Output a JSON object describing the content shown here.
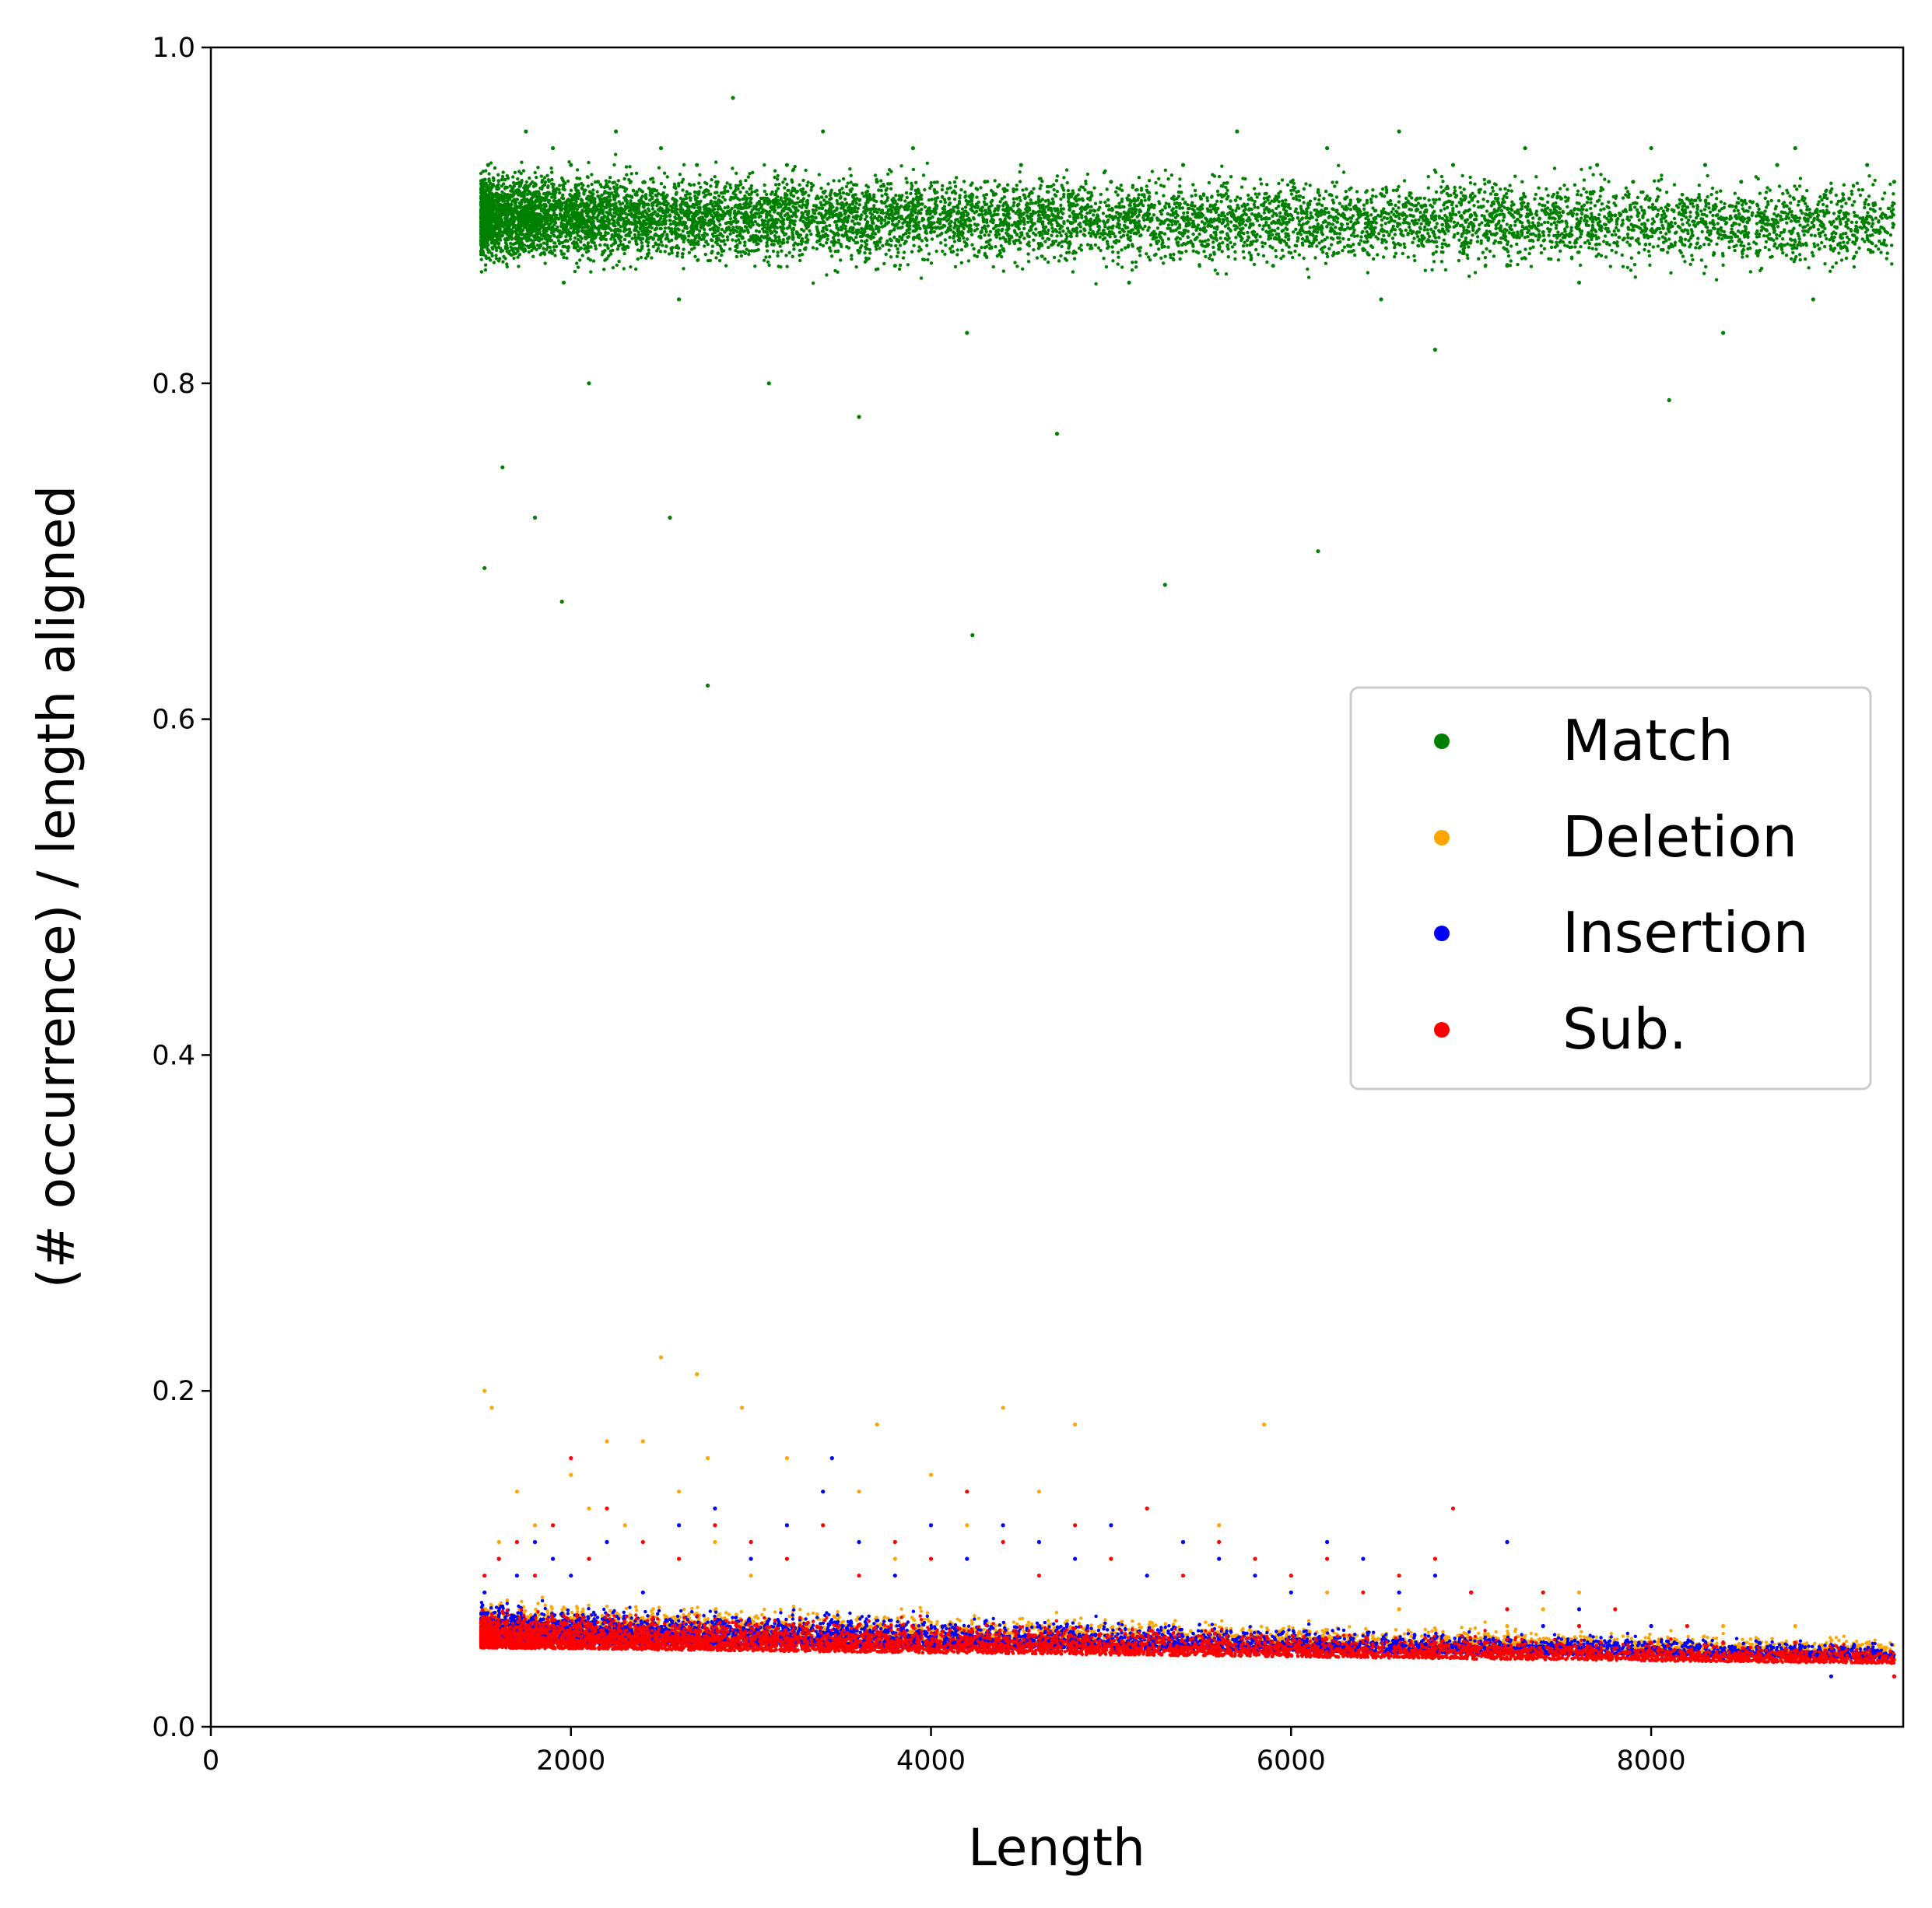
{
  "chart_data": {
    "type": "scatter",
    "title": "",
    "xlabel": "Length",
    "ylabel": "(# occurrence) / length aligned",
    "xlim": [
      0,
      9400
    ],
    "ylim": [
      0.0,
      1.0
    ],
    "x_ticks": [
      0,
      2000,
      4000,
      6000,
      8000
    ],
    "x_tick_labels": [
      "0",
      "2000",
      "4000",
      "6000",
      "8000"
    ],
    "y_ticks": [
      0.0,
      0.2,
      0.4,
      0.6,
      0.8,
      1.0
    ],
    "y_tick_labels": [
      "0.0",
      "0.2",
      "0.4",
      "0.6",
      "0.8",
      "1.0"
    ],
    "grid": false,
    "legend_position": "center-right",
    "series": [
      {
        "name": "Match",
        "color": "#008000",
        "x": [
          1520,
          1540,
          1580,
          1620,
          1700,
          1750,
          1800,
          1850,
          1900,
          1950,
          1960,
          2000,
          2100,
          2150,
          2250,
          2300,
          2400,
          2500,
          2550,
          2600,
          2700,
          2760,
          2800,
          2900,
          3000,
          3100,
          3200,
          3300,
          3400,
          3500,
          3600,
          3700,
          3800,
          3900,
          4000,
          4100,
          4200,
          4230,
          4300,
          4400,
          4500,
          4600,
          4700,
          4800,
          4900,
          5000,
          5100,
          5200,
          5300,
          5400,
          5500,
          5600,
          5700,
          5800,
          5900,
          6000,
          6100,
          6150,
          6200,
          6300,
          6400,
          6500,
          6600,
          6700,
          6800,
          6900,
          7000,
          7100,
          7200,
          7300,
          7400,
          7500,
          7600,
          7700,
          7800,
          7900,
          8000,
          8100,
          8200,
          8300,
          8400,
          8500,
          8600,
          8700,
          8800,
          8900,
          9000,
          9100,
          9200,
          9300,
          9350
        ],
        "y": [
          0.69,
          0.93,
          0.9,
          0.75,
          0.88,
          0.95,
          0.72,
          0.91,
          0.94,
          0.67,
          0.86,
          0.93,
          0.8,
          0.92,
          0.95,
          0.88,
          0.9,
          0.94,
          0.72,
          0.85,
          0.93,
          0.62,
          0.89,
          0.97,
          0.91,
          0.8,
          0.93,
          0.88,
          0.95,
          0.9,
          0.78,
          0.92,
          0.87,
          0.94,
          0.89,
          0.91,
          0.83,
          0.65,
          0.92,
          0.88,
          0.93,
          0.9,
          0.77,
          0.91,
          0.89,
          0.92,
          0.86,
          0.9,
          0.68,
          0.93,
          0.91,
          0.88,
          0.95,
          0.9,
          0.87,
          0.92,
          0.89,
          0.7,
          0.94,
          0.91,
          0.88,
          0.85,
          0.95,
          0.91,
          0.82,
          0.93,
          0.9,
          0.92,
          0.87,
          0.94,
          0.89,
          0.91,
          0.86,
          0.93,
          0.9,
          0.92,
          0.94,
          0.79,
          0.91,
          0.93,
          0.83,
          0.92,
          0.9,
          0.93,
          0.94,
          0.85,
          0.88,
          0.91,
          0.93,
          0.9,
          0.92
        ]
      },
      {
        "name": "Deletion",
        "color": "#FFA500",
        "x": [
          1520,
          1560,
          1600,
          1700,
          1800,
          1900,
          2000,
          2100,
          2200,
          2300,
          2400,
          2500,
          2600,
          2700,
          2760,
          2800,
          2950,
          3000,
          3200,
          3400,
          3600,
          3700,
          3800,
          4000,
          4200,
          4400,
          4600,
          4800,
          5000,
          5200,
          5400,
          5600,
          5850,
          6000,
          6200,
          6400,
          6600,
          6800,
          7000,
          7200,
          7400,
          7600,
          7800,
          8000,
          8200,
          8400,
          8600,
          8800,
          9000,
          9200,
          9350
        ],
        "y": [
          0.2,
          0.19,
          0.11,
          0.14,
          0.12,
          0.1,
          0.15,
          0.13,
          0.17,
          0.12,
          0.17,
          0.22,
          0.14,
          0.21,
          0.16,
          0.11,
          0.19,
          0.09,
          0.16,
          0.12,
          0.14,
          0.18,
          0.1,
          0.15,
          0.12,
          0.19,
          0.14,
          0.18,
          0.1,
          0.13,
          0.11,
          0.12,
          0.18,
          0.09,
          0.08,
          0.1,
          0.07,
          0.09,
          0.08,
          0.06,
          0.07,
          0.08,
          0.05,
          0.06,
          0.05,
          0.06,
          0.04,
          0.06,
          0.04,
          0.05,
          0.04
        ]
      },
      {
        "name": "Insertion",
        "color": "#0000FF",
        "x": [
          1520,
          1600,
          1700,
          1800,
          1900,
          2000,
          2200,
          2400,
          2600,
          2800,
          3000,
          3200,
          3400,
          3450,
          3600,
          3800,
          4000,
          4200,
          4400,
          4600,
          4800,
          5000,
          5200,
          5400,
          5600,
          5800,
          6000,
          6200,
          6400,
          6600,
          6800,
          7000,
          7200,
          7400,
          7600,
          7800,
          8000,
          8200,
          8400,
          8600,
          8800,
          9000,
          9200,
          9350
        ],
        "y": [
          0.08,
          0.1,
          0.09,
          0.11,
          0.1,
          0.09,
          0.11,
          0.08,
          0.12,
          0.13,
          0.1,
          0.12,
          0.14,
          0.16,
          0.11,
          0.09,
          0.12,
          0.1,
          0.12,
          0.11,
          0.1,
          0.12,
          0.09,
          0.11,
          0.1,
          0.09,
          0.08,
          0.11,
          0.1,
          0.08,
          0.09,
          0.08,
          0.11,
          0.06,
          0.07,
          0.05,
          0.06,
          0.05,
          0.04,
          0.05,
          0.04,
          0.03,
          0.04,
          0.03
        ]
      },
      {
        "name": "Sub.",
        "color": "#FF0000",
        "x": [
          1520,
          1600,
          1700,
          1800,
          1900,
          2000,
          2100,
          2200,
          2400,
          2600,
          2800,
          3000,
          3200,
          3400,
          3600,
          3800,
          4000,
          4200,
          4400,
          4600,
          4800,
          5000,
          5200,
          5400,
          5600,
          5800,
          6000,
          6200,
          6400,
          6600,
          6800,
          6900,
          7000,
          7200,
          7400,
          7600,
          7800,
          8000,
          8200,
          8400,
          8600,
          8800,
          9000,
          9200,
          9350
        ],
        "y": [
          0.09,
          0.1,
          0.11,
          0.09,
          0.12,
          0.16,
          0.1,
          0.13,
          0.11,
          0.1,
          0.12,
          0.11,
          0.1,
          0.12,
          0.09,
          0.11,
          0.1,
          0.14,
          0.11,
          0.09,
          0.12,
          0.1,
          0.13,
          0.09,
          0.11,
          0.1,
          0.09,
          0.1,
          0.08,
          0.09,
          0.1,
          0.13,
          0.08,
          0.07,
          0.08,
          0.06,
          0.07,
          0.05,
          0.06,
          0.05,
          0.04,
          0.05,
          0.04,
          0.04,
          0.03
        ]
      }
    ]
  }
}
